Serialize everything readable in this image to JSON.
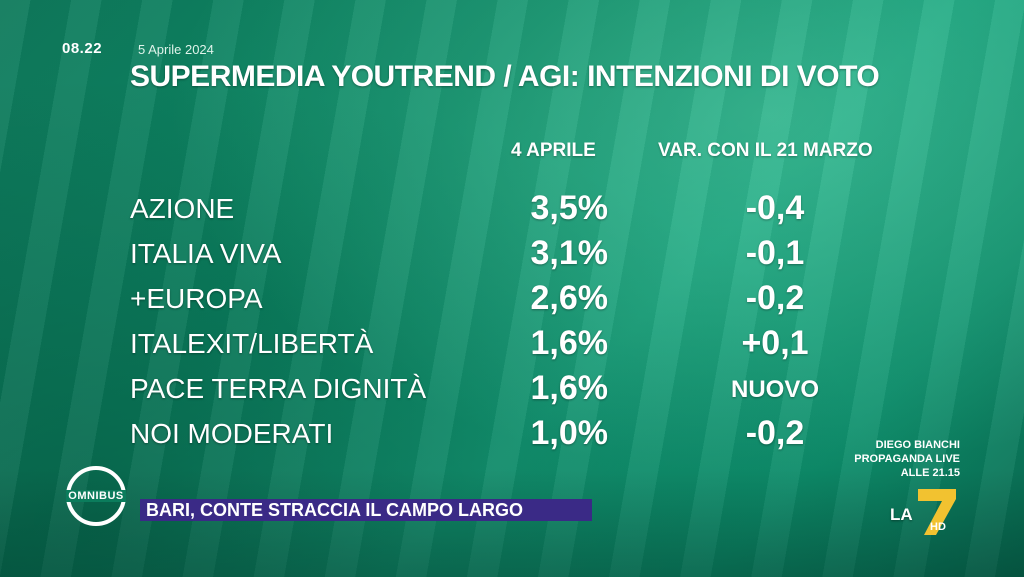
{
  "header": {
    "time": "08.22",
    "date": "5 Aprile 2024",
    "title": "SUPERMEDIA YOUTREND / AGI: INTENZIONI DI VOTO"
  },
  "table": {
    "col_value": "4 APRILE",
    "col_change": "VAR. CON IL 21 MARZO",
    "rows": [
      {
        "party": "AZIONE",
        "value": "3,5%",
        "change": "-0,4"
      },
      {
        "party": "ITALIA VIVA",
        "value": "3,1%",
        "change": "-0,1"
      },
      {
        "party": "+EUROPA",
        "value": "2,6%",
        "change": "-0,2"
      },
      {
        "party": "ITALEXIT/LIBERTÀ",
        "value": "1,6%",
        "change": "+0,1"
      },
      {
        "party": "PACE TERRA DIGNITÀ",
        "value": "1,6%",
        "change": "NUOVO"
      },
      {
        "party": "NOI MODERATI",
        "value": "1,0%",
        "change": "-0,2"
      }
    ]
  },
  "promo": {
    "line1": "DIEGO BIANCHI",
    "line2": "PROPAGANDA LIVE",
    "line3": "ALLE 21.15"
  },
  "show_logo": "OMNIBUS",
  "ticker": "BARI, CONTE STRACCIA IL CAMPO LARGO",
  "channel": {
    "la": "LA",
    "hd": "HD",
    "accent_color": "#f2c230",
    "ticker_color": "#3a2a86"
  }
}
